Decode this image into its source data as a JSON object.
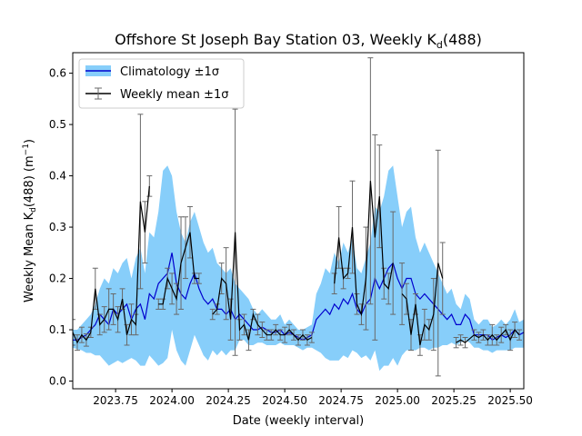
{
  "chart_data": {
    "type": "line",
    "title": {
      "main": "Offshore St Joseph Bay Station 03, Weekly K",
      "sub": "d",
      "tail": "(488)"
    },
    "xlabel": "Date (weekly interval)",
    "ylabel": {
      "pre": "Weekly Mean K",
      "sub": "d",
      "mid": "(488) (m",
      "sup": "−1",
      "post": ")"
    },
    "xlim": [
      2023.56,
      2025.56
    ],
    "ylim": [
      -0.015,
      0.64
    ],
    "xticks": [
      2023.75,
      2024.0,
      2024.25,
      2024.5,
      2024.75,
      2025.0,
      2025.25,
      2025.5
    ],
    "xtick_labels": [
      "2023.75",
      "2024.00",
      "2024.25",
      "2024.50",
      "2024.75",
      "2025.00",
      "2025.25",
      "2025.50"
    ],
    "yticks": [
      0.0,
      0.1,
      0.2,
      0.3,
      0.4,
      0.5,
      0.6
    ],
    "ytick_labels": [
      "0.0",
      "0.1",
      "0.2",
      "0.3",
      "0.4",
      "0.5",
      "0.6"
    ],
    "legend": {
      "position": "upper-left",
      "entries": [
        "Climatology ±1σ",
        "Weekly mean ±1σ"
      ]
    },
    "colors": {
      "band": "#87cefa",
      "climatology": "#0000cd",
      "weekly": "#000000",
      "errorbar": "#696969"
    },
    "climatology": {
      "x": [
        2023.56,
        2023.58,
        2023.6,
        2023.62,
        2023.64,
        2023.66,
        2023.68,
        2023.7,
        2023.72,
        2023.74,
        2023.76,
        2023.78,
        2023.8,
        2023.82,
        2023.84,
        2023.86,
        2023.88,
        2023.9,
        2023.92,
        2023.94,
        2023.96,
        2023.98,
        2024.0,
        2024.02,
        2024.04,
        2024.06,
        2024.08,
        2024.1,
        2024.12,
        2024.14,
        2024.16,
        2024.18,
        2024.2,
        2024.22,
        2024.24,
        2024.26,
        2024.28,
        2024.3,
        2024.32,
        2024.34,
        2024.36,
        2024.38,
        2024.4,
        2024.42,
        2024.44,
        2024.46,
        2024.48,
        2024.5,
        2024.52,
        2024.54,
        2024.56,
        2024.58,
        2024.6,
        2024.62,
        2024.64,
        2024.66,
        2024.68,
        2024.7,
        2024.72,
        2024.74,
        2024.76,
        2024.78,
        2024.8,
        2024.82,
        2024.84,
        2024.86,
        2024.88,
        2024.9,
        2024.92,
        2024.94,
        2024.96,
        2024.98,
        2025.0,
        2025.02,
        2025.04,
        2025.06,
        2025.08,
        2025.1,
        2025.12,
        2025.14,
        2025.16,
        2025.18,
        2025.2,
        2025.22,
        2025.24,
        2025.26,
        2025.28,
        2025.3,
        2025.32,
        2025.34,
        2025.36,
        2025.38,
        2025.4,
        2025.42,
        2025.44,
        2025.46,
        2025.48,
        2025.5,
        2025.52,
        2025.54,
        2025.56
      ],
      "mean": [
        0.08,
        0.08,
        0.085,
        0.09,
        0.1,
        0.11,
        0.13,
        0.12,
        0.11,
        0.14,
        0.13,
        0.14,
        0.15,
        0.12,
        0.14,
        0.15,
        0.12,
        0.17,
        0.16,
        0.19,
        0.2,
        0.21,
        0.25,
        0.19,
        0.17,
        0.16,
        0.19,
        0.21,
        0.18,
        0.16,
        0.15,
        0.16,
        0.14,
        0.14,
        0.13,
        0.14,
        0.12,
        0.13,
        0.12,
        0.11,
        0.1,
        0.1,
        0.105,
        0.1,
        0.095,
        0.095,
        0.1,
        0.09,
        0.095,
        0.09,
        0.085,
        0.08,
        0.085,
        0.09,
        0.12,
        0.13,
        0.14,
        0.13,
        0.15,
        0.14,
        0.16,
        0.15,
        0.17,
        0.14,
        0.13,
        0.15,
        0.16,
        0.2,
        0.18,
        0.2,
        0.22,
        0.23,
        0.2,
        0.18,
        0.2,
        0.2,
        0.17,
        0.16,
        0.17,
        0.16,
        0.15,
        0.14,
        0.13,
        0.12,
        0.13,
        0.11,
        0.11,
        0.13,
        0.12,
        0.09,
        0.09,
        0.09,
        0.09,
        0.08,
        0.085,
        0.09,
        0.085,
        0.09,
        0.1,
        0.09,
        0.095
      ],
      "upper": [
        0.1,
        0.1,
        0.11,
        0.12,
        0.13,
        0.15,
        0.18,
        0.2,
        0.19,
        0.22,
        0.21,
        0.23,
        0.24,
        0.2,
        0.24,
        0.26,
        0.21,
        0.29,
        0.28,
        0.33,
        0.41,
        0.42,
        0.4,
        0.33,
        0.29,
        0.27,
        0.31,
        0.33,
        0.3,
        0.27,
        0.25,
        0.26,
        0.23,
        0.22,
        0.21,
        0.22,
        0.19,
        0.18,
        0.17,
        0.16,
        0.14,
        0.13,
        0.14,
        0.13,
        0.12,
        0.12,
        0.13,
        0.11,
        0.12,
        0.11,
        0.1,
        0.1,
        0.105,
        0.11,
        0.17,
        0.19,
        0.22,
        0.21,
        0.25,
        0.23,
        0.27,
        0.25,
        0.28,
        0.22,
        0.21,
        0.24,
        0.27,
        0.34,
        0.33,
        0.36,
        0.41,
        0.42,
        0.36,
        0.3,
        0.33,
        0.34,
        0.28,
        0.25,
        0.27,
        0.25,
        0.23,
        0.21,
        0.19,
        0.17,
        0.18,
        0.15,
        0.14,
        0.17,
        0.16,
        0.12,
        0.11,
        0.12,
        0.12,
        0.105,
        0.11,
        0.12,
        0.11,
        0.12,
        0.14,
        0.115,
        0.12
      ],
      "lower": [
        0.065,
        0.062,
        0.06,
        0.055,
        0.055,
        0.05,
        0.05,
        0.04,
        0.03,
        0.035,
        0.04,
        0.035,
        0.04,
        0.045,
        0.04,
        0.03,
        0.03,
        0.05,
        0.04,
        0.03,
        0.035,
        0.045,
        0.1,
        0.06,
        0.04,
        0.03,
        0.06,
        0.09,
        0.07,
        0.05,
        0.04,
        0.06,
        0.05,
        0.06,
        0.05,
        0.06,
        0.06,
        0.08,
        0.08,
        0.07,
        0.07,
        0.075,
        0.075,
        0.07,
        0.07,
        0.07,
        0.075,
        0.07,
        0.07,
        0.07,
        0.065,
        0.06,
        0.065,
        0.065,
        0.06,
        0.055,
        0.045,
        0.04,
        0.04,
        0.04,
        0.05,
        0.045,
        0.06,
        0.055,
        0.045,
        0.05,
        0.04,
        0.06,
        0.02,
        0.03,
        0.03,
        0.045,
        0.03,
        0.05,
        0.06,
        0.06,
        0.06,
        0.065,
        0.065,
        0.06,
        0.065,
        0.065,
        0.07,
        0.07,
        0.075,
        0.07,
        0.075,
        0.08,
        0.075,
        0.065,
        0.065,
        0.06,
        0.06,
        0.055,
        0.06,
        0.06,
        0.06,
        0.06,
        0.065,
        0.065,
        0.065
      ]
    },
    "weekly": {
      "segments": [
        {
          "x": [
            2023.56,
            2023.58,
            2023.6,
            2023.62,
            2023.64,
            2023.66,
            2023.68,
            2023.7,
            2023.72,
            2023.74,
            2023.76,
            2023.78,
            2023.8,
            2023.82,
            2023.84,
            2023.86,
            2023.88,
            2023.9
          ],
          "y": [
            0.095,
            0.075,
            0.09,
            0.08,
            0.095,
            0.18,
            0.11,
            0.12,
            0.14,
            0.14,
            0.12,
            0.16,
            0.09,
            0.12,
            0.11,
            0.35,
            0.29,
            0.38
          ],
          "err": [
            0.025,
            0.015,
            0.015,
            0.012,
            0.01,
            0.04,
            0.02,
            0.025,
            0.04,
            0.03,
            0.025,
            0.02,
            0.02,
            0.03,
            0.02,
            0.17,
            0.06,
            0.02
          ]
        },
        {
          "x": [
            2023.94,
            2023.96,
            2023.98,
            2024.0,
            2024.02,
            2024.04,
            2024.06,
            2024.08,
            2024.1,
            2024.12
          ],
          "y": [
            0.15,
            0.15,
            0.2,
            0.18,
            0.16,
            0.23,
            0.26,
            0.29,
            0.2,
            0.2
          ],
          "err": [
            0.01,
            0.01,
            0.02,
            0.03,
            0.03,
            0.09,
            0.06,
            0.05,
            0.01,
            0.01
          ]
        },
        {
          "x": [
            2024.18,
            2024.2,
            2024.22,
            2024.24,
            2024.26,
            2024.28,
            2024.3,
            2024.32,
            2024.34,
            2024.36,
            2024.38,
            2024.4,
            2024.42,
            2024.44,
            2024.46,
            2024.48,
            2024.5,
            2024.52,
            2024.54,
            2024.56,
            2024.58,
            2024.6,
            2024.62
          ],
          "y": [
            0.13,
            0.14,
            0.2,
            0.19,
            0.12,
            0.29,
            0.1,
            0.11,
            0.08,
            0.13,
            0.11,
            0.1,
            0.09,
            0.09,
            0.1,
            0.09,
            0.09,
            0.1,
            0.09,
            0.08,
            0.09,
            0.08,
            0.085
          ],
          "err": [
            0.01,
            0.01,
            0.03,
            0.07,
            0.04,
            0.24,
            0.02,
            0.02,
            0.02,
            0.01,
            0.02,
            0.015,
            0.01,
            0.01,
            0.01,
            0.01,
            0.015,
            0.01,
            0.01,
            0.01,
            0.01,
            0.01,
            0.01
          ]
        },
        {
          "x": [
            2024.72,
            2024.74,
            2024.76,
            2024.78,
            2024.8,
            2024.82,
            2024.84,
            2024.86,
            2024.88,
            2024.9,
            2024.92,
            2024.94,
            2024.96,
            2024.98
          ],
          "y": [
            0.19,
            0.28,
            0.2,
            0.21,
            0.3,
            0.15,
            0.13,
            0.2,
            0.39,
            0.28,
            0.36,
            0.19,
            0.18,
            0.23
          ],
          "err": [
            0.02,
            0.06,
            0.02,
            0.01,
            0.09,
            0.02,
            0.02,
            0.1,
            0.24,
            0.2,
            0.1,
            0.03,
            0.03,
            0.1
          ]
        },
        {
          "x": [
            2025.02,
            2025.04,
            2025.06,
            2025.08,
            2025.1,
            2025.12,
            2025.14,
            2025.16,
            2025.18,
            2025.2
          ],
          "y": [
            0.17,
            0.16,
            0.09,
            0.15,
            0.07,
            0.11,
            0.1,
            0.13,
            0.23,
            0.2
          ],
          "err": [
            0.06,
            0.03,
            0.03,
            0.02,
            0.02,
            0.03,
            0.02,
            0.07,
            0.22,
            0.07
          ]
        },
        {
          "x": [
            2025.26,
            2025.28,
            2025.3,
            2025.34,
            2025.36,
            2025.38,
            2025.4,
            2025.42,
            2025.44,
            2025.46,
            2025.48,
            2025.5,
            2025.52,
            2025.54
          ],
          "y": [
            0.075,
            0.08,
            0.075,
            0.09,
            0.085,
            0.09,
            0.08,
            0.09,
            0.08,
            0.09,
            0.1,
            0.08,
            0.1,
            0.09
          ],
          "err": [
            0.01,
            0.01,
            0.01,
            0.01,
            0.01,
            0.01,
            0.01,
            0.02,
            0.01,
            0.015,
            0.01,
            0.02,
            0.015,
            0.01
          ]
        }
      ]
    }
  }
}
